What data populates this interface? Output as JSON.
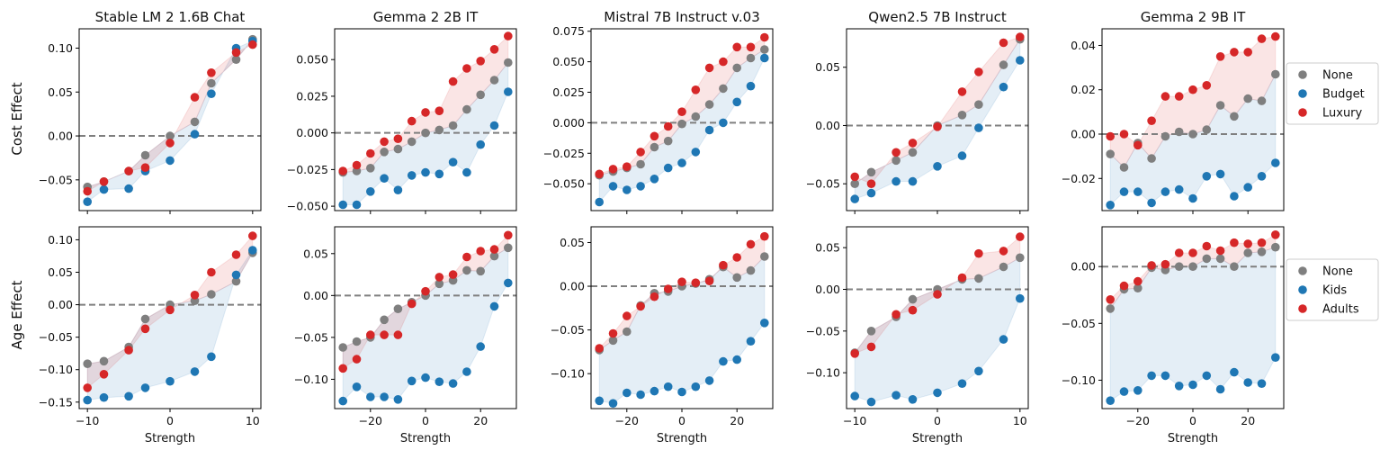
{
  "colors": {
    "none": "#7f7f7f",
    "budget": "#1f77b4",
    "luxury": "#d62728",
    "zero_line": "#7f7f7f"
  },
  "row_labels": [
    "Cost Effect",
    "Age Effect"
  ],
  "xlabel": "Strength",
  "legends": [
    {
      "row": 0,
      "entries": [
        "None",
        "Budget",
        "Luxury"
      ]
    },
    {
      "row": 1,
      "entries": [
        "None",
        "Kids",
        "Adults"
      ]
    }
  ],
  "chart_data": [
    {
      "type": "scatter",
      "row": 0,
      "col": 0,
      "title": "Stable LM 2 1.6B Chat",
      "xlim": [
        -11,
        11
      ],
      "ylim": [
        -0.085,
        0.122
      ],
      "xticks": [
        -10,
        0,
        10
      ],
      "xticklabels": [
        "−10",
        "0",
        "10"
      ],
      "show_xticks": false,
      "yticks": [
        -0.05,
        0,
        0.05,
        0.1
      ],
      "yticklabels": [
        "−0.05",
        "0.00",
        "0.05",
        "0.10"
      ],
      "x": [
        -10,
        -8,
        -5,
        -3,
        0,
        3,
        5,
        8,
        10
      ],
      "series": [
        {
          "name": "None",
          "values": [
            -0.058,
            -0.052,
            -0.04,
            -0.022,
            0.0,
            0.016,
            0.06,
            0.087,
            0.11
          ]
        },
        {
          "name": "Budget",
          "values": [
            -0.075,
            -0.061,
            -0.06,
            -0.04,
            -0.028,
            0.002,
            0.048,
            0.1,
            0.108
          ]
        },
        {
          "name": "Luxury",
          "values": [
            -0.063,
            -0.052,
            -0.04,
            -0.036,
            -0.008,
            0.044,
            0.072,
            0.095,
            0.104
          ]
        }
      ]
    },
    {
      "type": "scatter",
      "row": 0,
      "col": 1,
      "title": "Gemma 2 2B IT",
      "xlim": [
        -33,
        33
      ],
      "ylim": [
        -0.053,
        0.071
      ],
      "xticks": [
        -20,
        0,
        20
      ],
      "xticklabels": [
        "−20",
        "0",
        "20"
      ],
      "show_xticks": false,
      "yticks": [
        -0.05,
        -0.025,
        0,
        0.025,
        0.05
      ],
      "yticklabels": [
        "−0.050",
        "−0.025",
        "0.000",
        "0.025",
        "0.050"
      ],
      "x": [
        -30,
        -25,
        -20,
        -15,
        -10,
        -5,
        0,
        5,
        10,
        15,
        20,
        25,
        30
      ],
      "series": [
        {
          "name": "None",
          "values": [
            -0.027,
            -0.026,
            -0.024,
            -0.013,
            -0.011,
            -0.006,
            0.0,
            0.002,
            0.005,
            0.016,
            0.026,
            0.036,
            0.048
          ]
        },
        {
          "name": "Budget",
          "values": [
            -0.049,
            -0.049,
            -0.04,
            -0.031,
            -0.039,
            -0.029,
            -0.027,
            -0.028,
            -0.02,
            -0.027,
            -0.008,
            0.005,
            0.028
          ]
        },
        {
          "name": "Luxury",
          "values": [
            -0.026,
            -0.022,
            -0.014,
            -0.006,
            -0.004,
            0.008,
            0.014,
            0.015,
            0.035,
            0.044,
            0.049,
            0.057,
            0.066
          ]
        }
      ]
    },
    {
      "type": "scatter",
      "row": 0,
      "col": 2,
      "title": "Mistral 7B Instruct v.03",
      "xlim": [
        -33,
        33
      ],
      "ylim": [
        -0.072,
        0.077
      ],
      "xticks": [
        -20,
        0,
        20
      ],
      "xticklabels": [
        "−20",
        "0",
        "20"
      ],
      "show_xticks": false,
      "yticks": [
        -0.05,
        -0.025,
        0,
        0.025,
        0.05,
        0.075
      ],
      "yticklabels": [
        "−0.050",
        "−0.025",
        "0.000",
        "0.025",
        "0.050",
        "0.075"
      ],
      "x": [
        -30,
        -25,
        -20,
        -15,
        -10,
        -5,
        0,
        5,
        10,
        15,
        20,
        25,
        30
      ],
      "series": [
        {
          "name": "None",
          "values": [
            -0.043,
            -0.04,
            -0.037,
            -0.034,
            -0.02,
            -0.015,
            -0.001,
            0.005,
            0.015,
            0.028,
            0.045,
            0.053,
            0.06
          ]
        },
        {
          "name": "Budget",
          "values": [
            -0.065,
            -0.052,
            -0.055,
            -0.052,
            -0.046,
            -0.037,
            -0.033,
            -0.024,
            -0.006,
            0.0,
            0.017,
            0.03,
            0.053
          ]
        },
        {
          "name": "Luxury",
          "values": [
            -0.042,
            -0.038,
            -0.036,
            -0.024,
            -0.011,
            -0.003,
            0.009,
            0.027,
            0.045,
            0.05,
            0.062,
            0.062,
            0.07
          ]
        }
      ]
    },
    {
      "type": "scatter",
      "row": 0,
      "col": 3,
      "title": "Qwen2.5 7B Instruct",
      "xlim": [
        -11,
        11
      ],
      "ylim": [
        -0.073,
        0.083
      ],
      "xticks": [
        -10,
        0,
        10
      ],
      "xticklabels": [
        "−10",
        "0",
        "10"
      ],
      "show_xticks": false,
      "yticks": [
        -0.05,
        0,
        0.05
      ],
      "yticklabels": [
        "−0.05",
        "0.00",
        "0.05"
      ],
      "x": [
        -10,
        -8,
        -5,
        -3,
        0,
        3,
        5,
        8,
        10
      ],
      "series": [
        {
          "name": "None",
          "values": [
            -0.05,
            -0.04,
            -0.03,
            -0.023,
            0.0,
            0.009,
            0.018,
            0.052,
            0.074
          ]
        },
        {
          "name": "Budget",
          "values": [
            -0.063,
            -0.058,
            -0.048,
            -0.048,
            -0.035,
            -0.026,
            -0.002,
            0.033,
            0.056
          ]
        },
        {
          "name": "Luxury",
          "values": [
            -0.044,
            -0.05,
            -0.023,
            -0.015,
            -0.001,
            0.029,
            0.046,
            0.071,
            0.076
          ]
        }
      ]
    },
    {
      "type": "scatter",
      "row": 0,
      "col": 4,
      "title": "Gemma 2 9B IT",
      "xlim": [
        -33,
        33
      ],
      "ylim": [
        -0.0345,
        0.0475
      ],
      "xticks": [
        -20,
        0,
        20
      ],
      "xticklabels": [
        "−20",
        "0",
        "20"
      ],
      "show_xticks": false,
      "yticks": [
        -0.02,
        0,
        0.02,
        0.04
      ],
      "yticklabels": [
        "−0.02",
        "0.00",
        "0.02",
        "0.04"
      ],
      "x": [
        -30,
        -25,
        -20,
        -15,
        -10,
        -5,
        0,
        5,
        10,
        15,
        20,
        25,
        30
      ],
      "series": [
        {
          "name": "None",
          "values": [
            -0.009,
            -0.015,
            -0.004,
            -0.011,
            -0.001,
            0.001,
            0.0,
            0.002,
            0.013,
            0.008,
            0.016,
            0.015,
            0.027
          ]
        },
        {
          "name": "Budget",
          "values": [
            -0.032,
            -0.026,
            -0.026,
            -0.031,
            -0.026,
            -0.025,
            -0.029,
            -0.019,
            -0.018,
            -0.028,
            -0.024,
            -0.019,
            -0.013
          ]
        },
        {
          "name": "Luxury",
          "values": [
            -0.001,
            0.0,
            -0.005,
            0.006,
            0.017,
            0.017,
            0.02,
            0.022,
            0.035,
            0.037,
            0.037,
            0.043,
            0.044
          ]
        }
      ]
    },
    {
      "type": "scatter",
      "row": 1,
      "col": 0,
      "title": "",
      "xlim": [
        -11,
        11
      ],
      "ylim": [
        -0.16,
        0.12
      ],
      "xticks": [
        -10,
        0,
        10
      ],
      "xticklabels": [
        "−10",
        "0",
        "10"
      ],
      "show_xticks": true,
      "yticks": [
        -0.15,
        -0.1,
        -0.05,
        0,
        0.05,
        0.1
      ],
      "yticklabels": [
        "−0.15",
        "−0.10",
        "−0.05",
        "0.00",
        "0.05",
        "0.10"
      ],
      "x": [
        -10,
        -8,
        -5,
        -3,
        0,
        3,
        5,
        8,
        10
      ],
      "series": [
        {
          "name": "None",
          "values": [
            -0.091,
            -0.087,
            -0.065,
            -0.022,
            0.0,
            0.006,
            0.016,
            0.036,
            0.08
          ]
        },
        {
          "name": "Kids",
          "values": [
            -0.147,
            -0.143,
            -0.141,
            -0.128,
            -0.118,
            -0.103,
            -0.08,
            0.046,
            0.084
          ]
        },
        {
          "name": "Adults",
          "values": [
            -0.128,
            -0.107,
            -0.07,
            -0.037,
            -0.008,
            0.015,
            0.05,
            0.077,
            0.106
          ]
        }
      ]
    },
    {
      "type": "scatter",
      "row": 1,
      "col": 1,
      "title": "",
      "xlim": [
        -33,
        33
      ],
      "ylim": [
        -0.135,
        0.082
      ],
      "xticks": [
        -20,
        0,
        20
      ],
      "xticklabels": [
        "−20",
        "0",
        "20"
      ],
      "show_xticks": true,
      "yticks": [
        -0.1,
        -0.05,
        0,
        0.05
      ],
      "yticklabels": [
        "−0.10",
        "−0.05",
        "0.00",
        "0.05"
      ],
      "x": [
        -30,
        -25,
        -20,
        -15,
        -10,
        -5,
        0,
        5,
        10,
        15,
        20,
        25,
        30
      ],
      "series": [
        {
          "name": "None",
          "values": [
            -0.062,
            -0.055,
            -0.05,
            -0.029,
            -0.016,
            -0.008,
            0.0,
            0.014,
            0.018,
            0.03,
            0.029,
            0.047,
            0.057
          ]
        },
        {
          "name": "Kids",
          "values": [
            -0.126,
            -0.109,
            -0.121,
            -0.121,
            -0.124,
            -0.102,
            -0.098,
            -0.103,
            -0.105,
            -0.091,
            -0.061,
            -0.013,
            0.015
          ]
        },
        {
          "name": "Adults",
          "values": [
            -0.087,
            -0.076,
            -0.047,
            -0.047,
            -0.047,
            -0.01,
            0.005,
            0.022,
            0.025,
            0.046,
            0.053,
            0.055,
            0.072
          ]
        }
      ]
    },
    {
      "type": "scatter",
      "row": 1,
      "col": 2,
      "title": "",
      "xlim": [
        -33,
        33
      ],
      "ylim": [
        -0.14,
        0.068
      ],
      "xticks": [
        -20,
        0,
        20
      ],
      "xticklabels": [
        "−20",
        "0",
        "20"
      ],
      "show_xticks": true,
      "yticks": [
        -0.1,
        -0.05,
        0,
        0.05
      ],
      "yticklabels": [
        "−0.10",
        "−0.05",
        "0.00",
        "0.05"
      ],
      "x": [
        -30,
        -25,
        -20,
        -15,
        -10,
        -5,
        0,
        5,
        10,
        15,
        20,
        25,
        30
      ],
      "series": [
        {
          "name": "None",
          "values": [
            -0.073,
            -0.062,
            -0.052,
            -0.022,
            -0.008,
            -0.006,
            0.0,
            0.003,
            0.008,
            0.022,
            0.01,
            0.018,
            0.034
          ]
        },
        {
          "name": "Kids",
          "values": [
            -0.131,
            -0.134,
            -0.122,
            -0.124,
            -0.12,
            -0.115,
            -0.121,
            -0.115,
            -0.108,
            -0.086,
            -0.084,
            -0.063,
            -0.042
          ]
        },
        {
          "name": "Adults",
          "values": [
            -0.071,
            -0.054,
            -0.034,
            -0.023,
            -0.012,
            -0.003,
            0.005,
            0.004,
            0.006,
            0.024,
            0.033,
            0.048,
            0.057
          ]
        }
      ]
    },
    {
      "type": "scatter",
      "row": 1,
      "col": 3,
      "title": "",
      "xlim": [
        -11,
        11
      ],
      "ylim": [
        -0.143,
        0.075
      ],
      "xticks": [
        -10,
        0,
        10
      ],
      "xticklabels": [
        "−10",
        "0",
        "10"
      ],
      "show_xticks": true,
      "yticks": [
        -0.1,
        -0.05,
        0,
        0.05
      ],
      "yticklabels": [
        "−0.10",
        "−0.05",
        "0.00",
        "0.05"
      ],
      "x": [
        -10,
        -8,
        -5,
        -3,
        0,
        3,
        5,
        8,
        10
      ],
      "series": [
        {
          "name": "None",
          "values": [
            -0.076,
            -0.05,
            -0.033,
            -0.012,
            0.0,
            0.012,
            0.013,
            0.027,
            0.038
          ]
        },
        {
          "name": "Kids",
          "values": [
            -0.128,
            -0.135,
            -0.127,
            -0.132,
            -0.124,
            -0.113,
            -0.098,
            -0.06,
            -0.011
          ]
        },
        {
          "name": "Adults",
          "values": [
            -0.077,
            -0.069,
            -0.03,
            -0.025,
            -0.006,
            0.014,
            0.043,
            0.046,
            0.063
          ]
        }
      ]
    },
    {
      "type": "scatter",
      "row": 1,
      "col": 4,
      "title": "",
      "xlim": [
        -33,
        33
      ],
      "ylim": [
        -0.125,
        0.035
      ],
      "xticks": [
        -20,
        0,
        20
      ],
      "xticklabels": [
        "−20",
        "0",
        "20"
      ],
      "show_xticks": true,
      "yticks": [
        -0.1,
        -0.05,
        0
      ],
      "yticklabels": [
        "−0.10",
        "−0.05",
        "0.00"
      ],
      "x": [
        -30,
        -25,
        -20,
        -15,
        -10,
        -5,
        0,
        5,
        10,
        15,
        20,
        25,
        30
      ],
      "series": [
        {
          "name": "None",
          "values": [
            -0.037,
            -0.02,
            -0.019,
            -0.001,
            -0.003,
            0.0,
            0.0,
            0.007,
            0.007,
            0.0,
            0.012,
            0.013,
            0.017
          ]
        },
        {
          "name": "Kids",
          "values": [
            -0.118,
            -0.11,
            -0.109,
            -0.096,
            -0.096,
            -0.105,
            -0.104,
            -0.096,
            -0.108,
            -0.093,
            -0.102,
            -0.103,
            -0.08
          ]
        },
        {
          "name": "Adults",
          "values": [
            -0.029,
            -0.017,
            -0.013,
            0.001,
            0.002,
            0.012,
            0.012,
            0.018,
            0.014,
            0.021,
            0.02,
            0.021,
            0.028
          ]
        }
      ]
    }
  ]
}
